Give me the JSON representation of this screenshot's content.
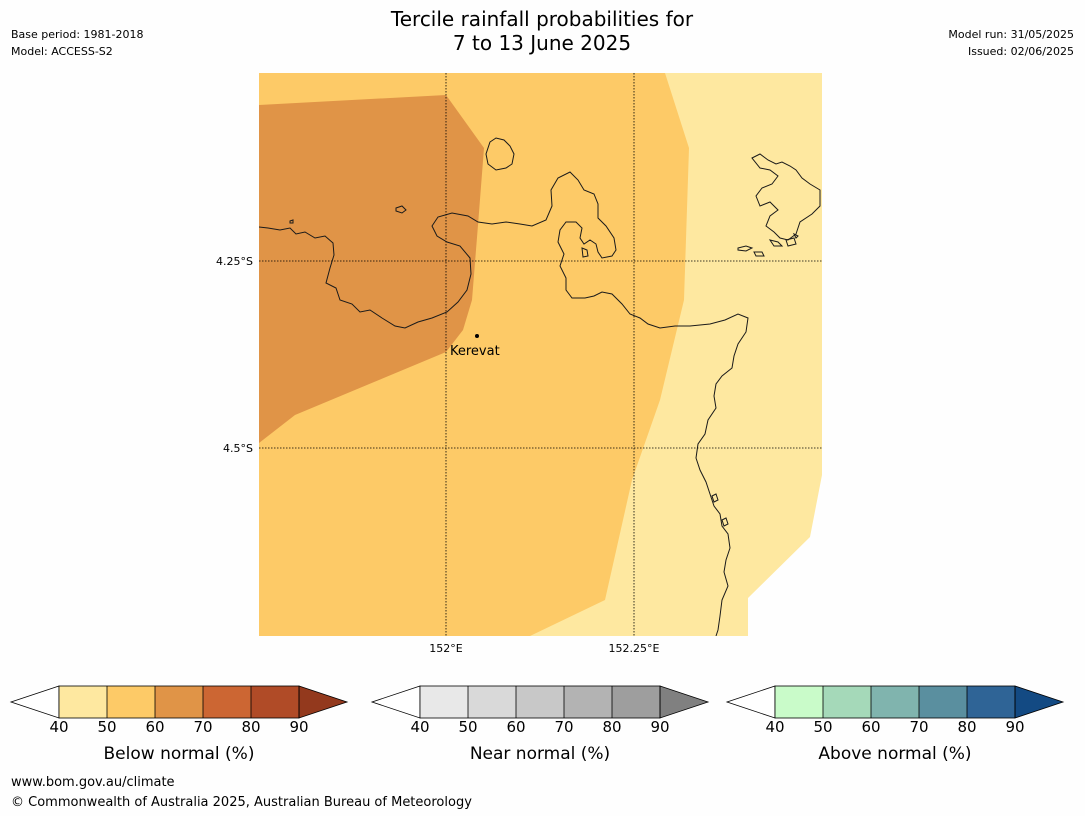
{
  "header": {
    "title_line1": "Tercile rainfall probabilities for",
    "title_line2": "7 to 13 June 2025",
    "base_period": "Base period: 1981-2018",
    "model": "Model: ACCESS-S2",
    "model_run": "Model run: 31/05/2025",
    "issued": "Issued: 02/06/2025"
  },
  "map": {
    "place_label": "Kerevat",
    "lat_labels": [
      "4.25°S",
      "4.5°S"
    ],
    "lon_labels": [
      "152°E",
      "152.25°E"
    ],
    "fill_colors": {
      "background_40_50": "#fee8a0",
      "band_50_60": "#fdca67",
      "band_60_70": "#e09447"
    }
  },
  "colorbars": [
    {
      "label": "Below normal (%)",
      "ticks": [
        "40",
        "50",
        "60",
        "70",
        "80",
        "90"
      ],
      "colors": [
        "#fee8a0",
        "#fdca67",
        "#e09447",
        "#cc6633",
        "#b04b27",
        "#93391d"
      ]
    },
    {
      "label": "Near normal (%)",
      "ticks": [
        "40",
        "50",
        "60",
        "70",
        "80",
        "90"
      ],
      "colors": [
        "#e8e8e8",
        "#d9d9d9",
        "#c8c8c8",
        "#b3b3b3",
        "#9e9e9e",
        "#808080"
      ]
    },
    {
      "label": "Above normal (%)",
      "ticks": [
        "40",
        "50",
        "60",
        "70",
        "80",
        "90"
      ],
      "colors": [
        "#c9fbc9",
        "#a5d9b9",
        "#80b4ae",
        "#5a8f9f",
        "#2f6496",
        "#134a83"
      ]
    }
  ],
  "footer": {
    "url": "www.bom.gov.au/climate",
    "copyright": "© Commonwealth of Australia 2025, Australian Bureau of Meteorology"
  }
}
